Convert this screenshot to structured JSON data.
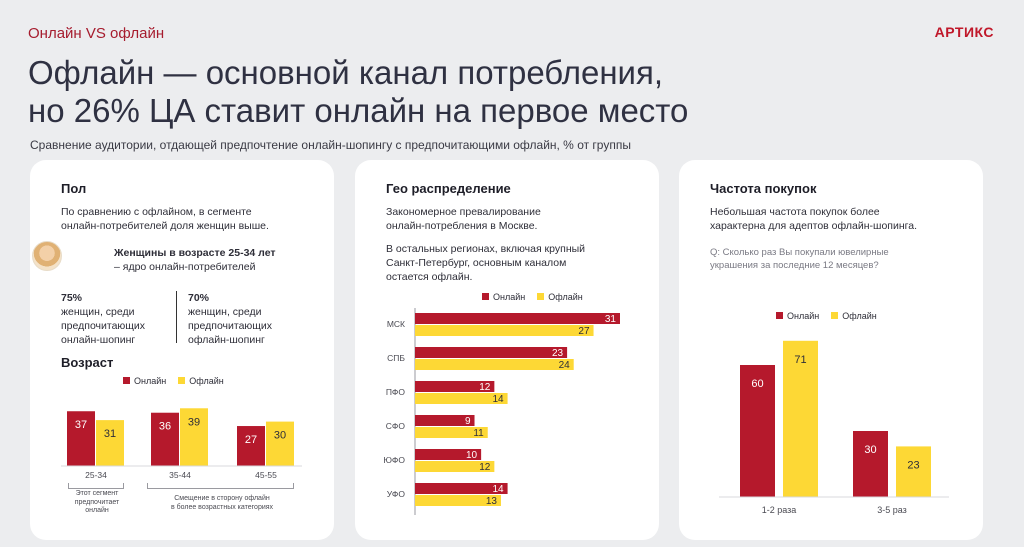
{
  "header": {
    "section": "Онлайн VS офлайн",
    "logo": "АРТИКС",
    "title_line1": "Офлайн — основной канал потребления,",
    "title_line2": "но 26% ЦА ставит онлайн на первое место",
    "subtitle": "Сравнение аудитории, отдающей предпочтение онлайн-шопингу с предпочитающими офлайн, % от группы"
  },
  "legend": {
    "online": "Онлайн",
    "offline": "Офлайн"
  },
  "colors": {
    "online": "#b5192c",
    "offline": "#fdd835"
  },
  "gender": {
    "heading": "Пол",
    "text_line1": "По сравнению с офлайном, в сегменте",
    "text_line2": "онлайн-потребителей доля женщин выше.",
    "persona_bold": "Женщины в возрасте 25-34 лет",
    "persona_rest": "– ядро онлайн-потребителей",
    "stat1_value": "75%",
    "stat1_line1": "женщин, среди",
    "stat1_line2": "предпочитающих",
    "stat1_line3": "онлайн-шопинг",
    "stat2_value": "70%",
    "stat2_line1": "женщин, среди",
    "stat2_line2": "предпочитающих",
    "stat2_line3": "офлайн-шопинг"
  },
  "age": {
    "heading": "Возраст",
    "note1_line1": "Этот сегмент",
    "note1_line2": "предпочитает",
    "note1_line3": "онлайн",
    "note2_line1": "Смещение в сторону офлайн",
    "note2_line2": "в более возрастных категориях"
  },
  "geo": {
    "heading": "Гео распределение",
    "text1_line1": "Закономерное превалирование",
    "text1_line2": "онлайн-потребления в Москве.",
    "text2_line1": "В остальных регионах, включая крупный",
    "text2_line2": "Санкт-Петербург, основным каналом",
    "text2_line3": "остается офлайн."
  },
  "freq": {
    "heading": "Частота покупок",
    "text_line1": "Небольшая частота покупок более",
    "text_line2": "характерна для адептов офлайн-шопинга.",
    "question_line1": "Q: Сколько раз Вы покупали ювелирные",
    "question_line2": "украшения за последние 12 месяцев?"
  },
  "chart_data": [
    {
      "id": "age",
      "type": "bar",
      "title": "Возраст",
      "categories": [
        "25-34",
        "35-44",
        "45-55"
      ],
      "series": [
        {
          "name": "Онлайн",
          "values": [
            37,
            36,
            27
          ]
        },
        {
          "name": "Офлайн",
          "values": [
            31,
            39,
            30
          ]
        }
      ],
      "ylim": [
        0,
        45
      ]
    },
    {
      "id": "geo",
      "type": "bar",
      "orientation": "horizontal",
      "title": "Гео распределение",
      "categories": [
        "МСК",
        "СПБ",
        "ПФО",
        "СФО",
        "ЮФО",
        "УФО"
      ],
      "series": [
        {
          "name": "Онлайн",
          "values": [
            31,
            23,
            12,
            9,
            10,
            14
          ]
        },
        {
          "name": "Офлайн",
          "values": [
            27,
            24,
            14,
            11,
            12,
            13
          ]
        }
      ],
      "xlim": [
        0,
        31
      ]
    },
    {
      "id": "freq",
      "type": "bar",
      "title": "Частота покупок",
      "categories": [
        "1-2 раза",
        "3-5 раз"
      ],
      "series": [
        {
          "name": "Онлайн",
          "values": [
            60,
            30
          ]
        },
        {
          "name": "Офлайн",
          "values": [
            71,
            23
          ]
        }
      ],
      "ylim": [
        0,
        75
      ]
    }
  ]
}
